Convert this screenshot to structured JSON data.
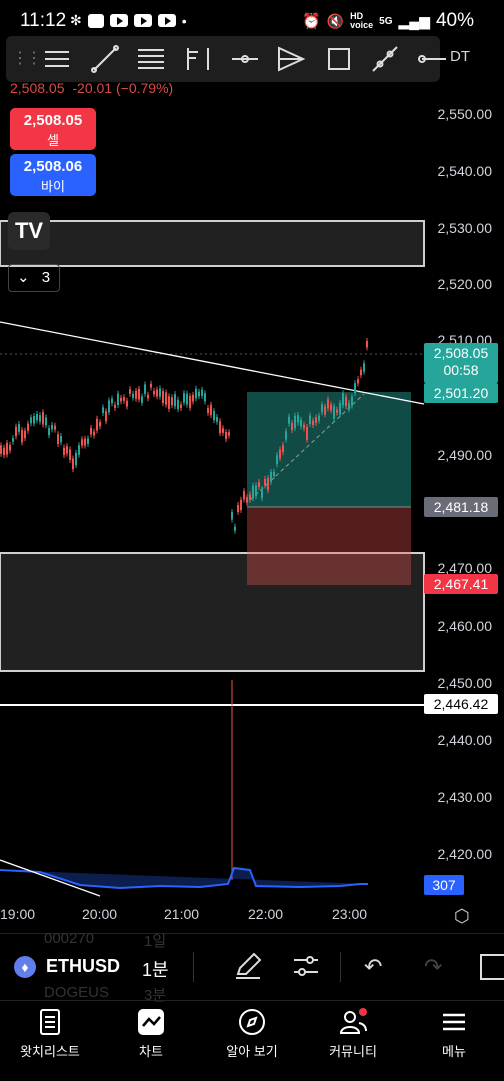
{
  "status": {
    "time": "11:12",
    "signal": "40%"
  },
  "header": {
    "price": "2,508.05",
    "change": "-20.01 (−0.79%)",
    "sell_price": "2,508.05",
    "sell_label": "셀",
    "buy_price": "2,508.06",
    "buy_label": "바이",
    "indicator_count": "3",
    "pair_suffix": "DT"
  },
  "y_axis": [
    "2,550.00",
    "2,540.00",
    "2,530.00",
    "2,520.00",
    "2,510.00",
    "2,490.00",
    "2,470.00",
    "2,460.00",
    "2,450.00",
    "2,440.00",
    "2,430.00",
    "2,420.00"
  ],
  "tags": {
    "current_price": "2,508.05",
    "countdown": "00:58",
    "target": "2,501.20",
    "entry": "2,481.18",
    "stop": "2,467.41",
    "level": "2,446.42",
    "volume": "307"
  },
  "x_axis": [
    "19:00",
    "20:00",
    "21:00",
    "22:00",
    "23:00"
  ],
  "symbol_bar": {
    "symbol": "ETHUSD",
    "interval": "1분",
    "ghost_top_left": "000270",
    "ghost_top_right": "1일",
    "ghost_bottom_left": "DOGEUS",
    "ghost_bottom_right": "3분"
  },
  "nav": [
    {
      "label": "왓치리스트",
      "icon": "watchlist-icon"
    },
    {
      "label": "차트",
      "icon": "chart-icon"
    },
    {
      "label": "알아 보기",
      "icon": "compass-icon"
    },
    {
      "label": "커뮤니티",
      "icon": "community-icon"
    },
    {
      "label": "메뉴",
      "icon": "menu-icon"
    }
  ],
  "colors": {
    "up": "#26a69a",
    "down": "#ef5350",
    "sell": "#f23645",
    "buy": "#2962ff",
    "volume": "#2962ff"
  }
}
